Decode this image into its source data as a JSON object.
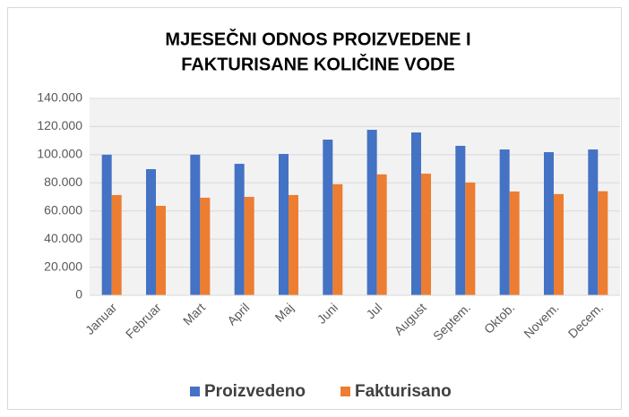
{
  "chart_data": {
    "type": "bar",
    "title": [
      "MJESEČNI ODNOS PROIZVEDENE I",
      "FAKTURISANE KOLIČINE VODE"
    ],
    "categories": [
      "Januar",
      "Februar",
      "Mart",
      "April",
      "Maj",
      "Juni",
      "Jul",
      "August",
      "Septem.",
      "Oktob.",
      "Novem.",
      "Decem."
    ],
    "series": [
      {
        "name": "Proizvedeno",
        "color": "#4472c4",
        "values": [
          100000,
          89700,
          100000,
          93500,
          100500,
          110700,
          117700,
          115800,
          106300,
          103700,
          101800,
          103700
        ]
      },
      {
        "name": "Fakturisano",
        "color": "#ed7d31",
        "values": [
          71300,
          63600,
          69400,
          70000,
          71300,
          79000,
          86000,
          86500,
          80200,
          73800,
          72000,
          74000
        ]
      }
    ],
    "ylim": [
      0,
      140000
    ],
    "yticks": [
      0,
      {
        "value": 20000,
        "label": "20.000"
      },
      {
        "value": 40000,
        "label": "40.000"
      },
      {
        "value": 60000,
        "label": "60.000"
      },
      {
        "value": 80000,
        "label": "80.000"
      },
      {
        "value": 100000,
        "label": "100.000"
      },
      {
        "value": 120000,
        "label": "120.000"
      },
      {
        "value": 140000,
        "label": "140.000"
      }
    ],
    "grid": true,
    "legend": "bottom"
  }
}
